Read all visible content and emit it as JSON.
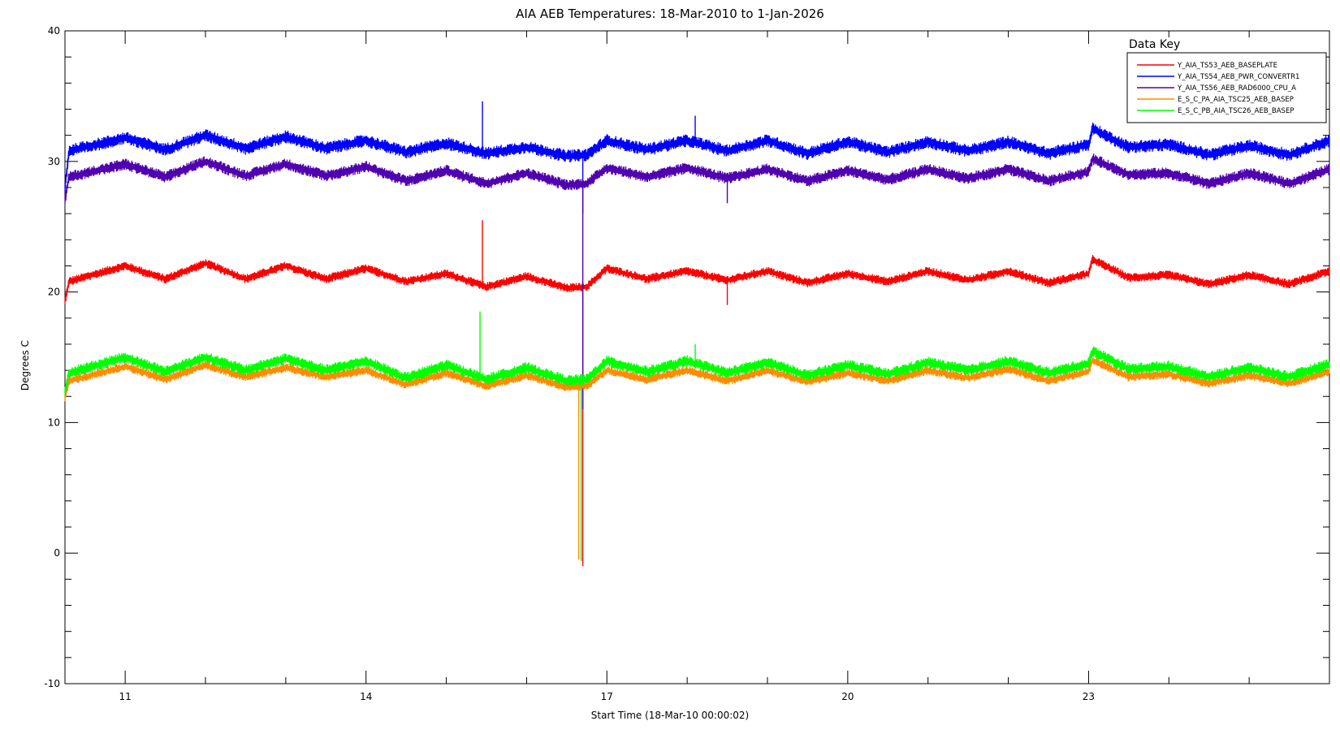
{
  "chart_data": {
    "type": "line",
    "title": "AIA AEB Temperatures: 18-Mar-2010 to 1-Jan-2026",
    "xlabel": "Start Time (18-Mar-10 00:00:02)",
    "ylabel": "Degrees C",
    "xlim": [
      10.25,
      26.0
    ],
    "ylim": [
      -10,
      40
    ],
    "x_ticks": [
      11,
      14,
      17,
      20,
      23
    ],
    "y_ticks": [
      -10,
      0,
      10,
      20,
      30,
      40
    ],
    "grid": false,
    "legend": {
      "title": "Data Key",
      "placement": "top-right"
    },
    "series": [
      {
        "name": "Y_AIA_TS53_AEB_BASEPLATE",
        "color": "#ff0000",
        "base": 21.0,
        "x": [
          10.25,
          10.3,
          11.0,
          11.5,
          12.0,
          12.5,
          13.0,
          13.5,
          14.0,
          14.5,
          15.0,
          15.5,
          16.0,
          16.5,
          16.75,
          17.0,
          17.5,
          18.0,
          18.5,
          19.0,
          19.5,
          20.0,
          20.5,
          21.0,
          21.5,
          22.0,
          22.5,
          23.0,
          23.05,
          23.5,
          24.0,
          24.5,
          25.0,
          25.5,
          26.0
        ],
        "values": [
          19.3,
          20.8,
          22.0,
          21.0,
          22.2,
          21.0,
          22.0,
          21.0,
          21.8,
          20.8,
          21.4,
          20.4,
          21.2,
          20.3,
          20.4,
          21.8,
          21.0,
          21.6,
          20.9,
          21.6,
          20.7,
          21.4,
          20.8,
          21.6,
          20.9,
          21.6,
          20.7,
          21.4,
          22.5,
          21.1,
          21.3,
          20.6,
          21.3,
          20.6,
          21.6
        ],
        "band": 0.35,
        "spikes": [
          {
            "x": 15.45,
            "v": 25.5
          },
          {
            "x": 16.7,
            "v": -1.0
          },
          {
            "x": 18.5,
            "v": 19.0
          }
        ]
      },
      {
        "name": "Y_AIA_TS54_AEB_PWR_CONVERTR1",
        "color": "#0000ff",
        "base": 31.0,
        "x": [
          10.25,
          10.3,
          11.0,
          11.5,
          12.0,
          12.5,
          13.0,
          13.5,
          14.0,
          14.5,
          15.0,
          15.5,
          16.0,
          16.5,
          16.75,
          17.0,
          17.5,
          18.0,
          18.5,
          19.0,
          19.5,
          20.0,
          20.5,
          21.0,
          21.5,
          22.0,
          22.5,
          23.0,
          23.05,
          23.5,
          24.0,
          24.5,
          25.0,
          25.5,
          26.0
        ],
        "values": [
          28.0,
          30.8,
          31.8,
          30.9,
          32.0,
          31.0,
          31.9,
          31.0,
          31.6,
          30.7,
          31.4,
          30.6,
          31.1,
          30.4,
          30.5,
          31.6,
          30.9,
          31.6,
          30.8,
          31.6,
          30.6,
          31.5,
          30.7,
          31.5,
          30.8,
          31.5,
          30.6,
          31.3,
          32.5,
          31.1,
          31.3,
          30.5,
          31.2,
          30.5,
          31.6
        ],
        "band": 0.5,
        "spikes": [
          {
            "x": 15.45,
            "v": 34.6
          },
          {
            "x": 16.7,
            "v": 26.0
          },
          {
            "x": 18.1,
            "v": 33.5
          }
        ]
      },
      {
        "name": "Y_AIA_TS56_AEB_RAD6000_CPU_A",
        "color": "#5000b0",
        "base": 29.0,
        "x": [
          10.25,
          10.3,
          11.0,
          11.5,
          12.0,
          12.5,
          13.0,
          13.5,
          14.0,
          14.5,
          15.0,
          15.5,
          16.0,
          16.5,
          16.75,
          17.0,
          17.5,
          18.0,
          18.5,
          19.0,
          19.5,
          20.0,
          20.5,
          21.0,
          21.5,
          22.0,
          22.5,
          23.0,
          23.05,
          23.5,
          24.0,
          24.5,
          25.0,
          25.5,
          26.0
        ],
        "values": [
          27.0,
          28.8,
          29.8,
          28.8,
          30.0,
          28.9,
          29.8,
          28.9,
          29.6,
          28.5,
          29.3,
          28.3,
          29.1,
          28.2,
          28.3,
          29.5,
          28.8,
          29.5,
          28.7,
          29.4,
          28.5,
          29.3,
          28.6,
          29.4,
          28.7,
          29.4,
          28.5,
          29.2,
          30.2,
          29.0,
          29.1,
          28.3,
          29.1,
          28.3,
          29.4
        ],
        "band": 0.45,
        "spikes": [
          {
            "x": 16.7,
            "v": 11.0
          },
          {
            "x": 18.5,
            "v": 26.8
          }
        ]
      },
      {
        "name": "E_S_C_PA_AIA_TSC25_AEB_BASEP",
        "color": "#ff8c00",
        "base": 13.5,
        "x": [
          10.25,
          10.3,
          11.0,
          11.5,
          12.0,
          12.5,
          13.0,
          13.5,
          14.0,
          14.5,
          15.0,
          15.5,
          16.0,
          16.5,
          16.75,
          17.0,
          17.5,
          18.0,
          18.5,
          19.0,
          19.5,
          20.0,
          20.5,
          21.0,
          21.5,
          22.0,
          22.5,
          23.0,
          23.05,
          23.5,
          24.0,
          24.5,
          25.0,
          25.5,
          26.0
        ],
        "values": [
          11.8,
          13.2,
          14.3,
          13.3,
          14.4,
          13.5,
          14.2,
          13.5,
          14.0,
          12.9,
          13.8,
          12.8,
          13.6,
          12.7,
          12.8,
          14.0,
          13.3,
          14.0,
          13.2,
          14.0,
          13.1,
          13.8,
          13.2,
          14.0,
          13.4,
          14.1,
          13.2,
          13.9,
          14.8,
          13.5,
          13.7,
          13.0,
          13.6,
          13.0,
          13.9
        ],
        "band": 0.35,
        "spikes": [
          {
            "x": 16.65,
            "v": -0.5
          }
        ]
      },
      {
        "name": "E_S_C_PB_AIA_TSC26_AEB_BASEP",
        "color": "#00ff00",
        "base": 14.0,
        "x": [
          10.25,
          10.3,
          11.0,
          11.5,
          12.0,
          12.5,
          13.0,
          13.5,
          14.0,
          14.5,
          15.0,
          15.5,
          16.0,
          16.5,
          16.75,
          17.0,
          17.5,
          18.0,
          18.5,
          19.0,
          19.5,
          20.0,
          20.5,
          21.0,
          21.5,
          22.0,
          22.5,
          23.0,
          23.05,
          23.5,
          24.0,
          24.5,
          25.0,
          25.5,
          26.0
        ],
        "values": [
          12.3,
          13.8,
          15.0,
          13.9,
          15.0,
          14.0,
          14.9,
          14.0,
          14.7,
          13.4,
          14.4,
          13.3,
          14.2,
          13.2,
          13.3,
          14.7,
          13.9,
          14.7,
          13.8,
          14.6,
          13.6,
          14.4,
          13.7,
          14.6,
          14.0,
          14.7,
          13.8,
          14.5,
          15.5,
          14.1,
          14.3,
          13.5,
          14.2,
          13.5,
          14.5
        ],
        "band": 0.45,
        "spikes": [
          {
            "x": 15.42,
            "v": 18.5
          },
          {
            "x": 16.68,
            "v": -0.6
          },
          {
            "x": 18.1,
            "v": 16.0
          }
        ]
      }
    ]
  }
}
